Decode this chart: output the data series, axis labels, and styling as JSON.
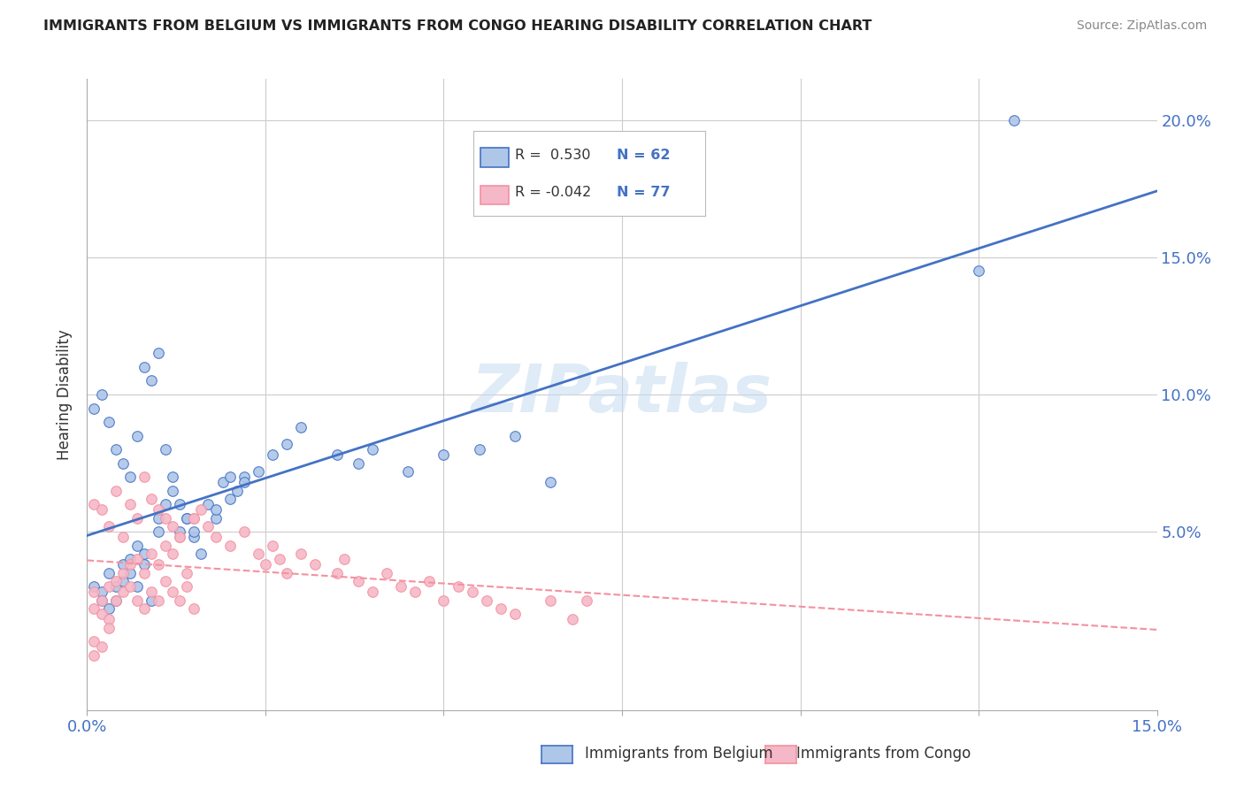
{
  "title": "IMMIGRANTS FROM BELGIUM VS IMMIGRANTS FROM CONGO HEARING DISABILITY CORRELATION CHART",
  "source": "Source: ZipAtlas.com",
  "ylabel": "Hearing Disability",
  "legend_belgium": "Immigrants from Belgium",
  "legend_congo": "Immigrants from Congo",
  "r_belgium": 0.53,
  "n_belgium": 62,
  "r_congo": -0.042,
  "n_congo": 77,
  "watermark": "ZIPatlas",
  "belgium_color": "#aec6e8",
  "congo_color": "#f5b8c8",
  "belgium_line_color": "#4472c4",
  "congo_line_color": "#f4919f",
  "belgium_x": [
    0.001,
    0.002,
    0.002,
    0.003,
    0.003,
    0.004,
    0.004,
    0.005,
    0.005,
    0.006,
    0.006,
    0.007,
    0.007,
    0.008,
    0.008,
    0.009,
    0.01,
    0.01,
    0.011,
    0.012,
    0.013,
    0.014,
    0.015,
    0.016,
    0.017,
    0.018,
    0.019,
    0.02,
    0.021,
    0.022,
    0.001,
    0.002,
    0.003,
    0.004,
    0.005,
    0.006,
    0.007,
    0.008,
    0.009,
    0.01,
    0.011,
    0.012,
    0.013,
    0.014,
    0.015,
    0.018,
    0.02,
    0.022,
    0.024,
    0.026,
    0.028,
    0.03,
    0.035,
    0.038,
    0.04,
    0.045,
    0.05,
    0.055,
    0.06,
    0.065,
    0.125,
    0.13
  ],
  "belgium_y": [
    0.03,
    0.028,
    0.025,
    0.022,
    0.035,
    0.03,
    0.025,
    0.032,
    0.038,
    0.04,
    0.035,
    0.03,
    0.045,
    0.042,
    0.038,
    0.025,
    0.05,
    0.055,
    0.06,
    0.065,
    0.05,
    0.055,
    0.048,
    0.042,
    0.06,
    0.055,
    0.068,
    0.07,
    0.065,
    0.07,
    0.095,
    0.1,
    0.09,
    0.08,
    0.075,
    0.07,
    0.085,
    0.11,
    0.105,
    0.115,
    0.08,
    0.07,
    0.06,
    0.055,
    0.05,
    0.058,
    0.062,
    0.068,
    0.072,
    0.078,
    0.082,
    0.088,
    0.078,
    0.075,
    0.08,
    0.072,
    0.078,
    0.08,
    0.085,
    0.068,
    0.145,
    0.2
  ],
  "congo_x": [
    0.001,
    0.001,
    0.002,
    0.002,
    0.003,
    0.003,
    0.004,
    0.004,
    0.005,
    0.005,
    0.006,
    0.006,
    0.007,
    0.007,
    0.008,
    0.008,
    0.009,
    0.009,
    0.01,
    0.01,
    0.011,
    0.011,
    0.012,
    0.012,
    0.013,
    0.013,
    0.014,
    0.014,
    0.015,
    0.015,
    0.001,
    0.002,
    0.003,
    0.004,
    0.005,
    0.006,
    0.007,
    0.008,
    0.009,
    0.01,
    0.011,
    0.012,
    0.013,
    0.015,
    0.016,
    0.017,
    0.018,
    0.02,
    0.022,
    0.024,
    0.025,
    0.026,
    0.027,
    0.028,
    0.03,
    0.032,
    0.035,
    0.036,
    0.038,
    0.04,
    0.042,
    0.044,
    0.046,
    0.048,
    0.05,
    0.052,
    0.054,
    0.056,
    0.058,
    0.06,
    0.065,
    0.068,
    0.003,
    0.001,
    0.001,
    0.002,
    0.07
  ],
  "congo_y": [
    0.028,
    0.022,
    0.025,
    0.02,
    0.018,
    0.03,
    0.025,
    0.032,
    0.028,
    0.035,
    0.03,
    0.038,
    0.025,
    0.04,
    0.022,
    0.035,
    0.028,
    0.042,
    0.025,
    0.038,
    0.032,
    0.045,
    0.028,
    0.042,
    0.025,
    0.048,
    0.03,
    0.035,
    0.022,
    0.055,
    0.06,
    0.058,
    0.052,
    0.065,
    0.048,
    0.06,
    0.055,
    0.07,
    0.062,
    0.058,
    0.055,
    0.052,
    0.048,
    0.055,
    0.058,
    0.052,
    0.048,
    0.045,
    0.05,
    0.042,
    0.038,
    0.045,
    0.04,
    0.035,
    0.042,
    0.038,
    0.035,
    0.04,
    0.032,
    0.028,
    0.035,
    0.03,
    0.028,
    0.032,
    0.025,
    0.03,
    0.028,
    0.025,
    0.022,
    0.02,
    0.025,
    0.018,
    0.015,
    0.01,
    0.005,
    0.008,
    0.025
  ],
  "xmin": 0.0,
  "xmax": 0.15,
  "ymin": -0.015,
  "ymax": 0.215,
  "ytick_vals": [
    0.05,
    0.1,
    0.15,
    0.2
  ],
  "ytick_labels": [
    "5.0%",
    "10.0%",
    "15.0%",
    "20.0%"
  ],
  "xtick_vals": [
    0.0,
    0.025,
    0.05,
    0.075,
    0.1,
    0.125,
    0.15
  ],
  "xtick_labels_show": {
    "0.0": "0.0%",
    "0.15": "15.0%"
  }
}
